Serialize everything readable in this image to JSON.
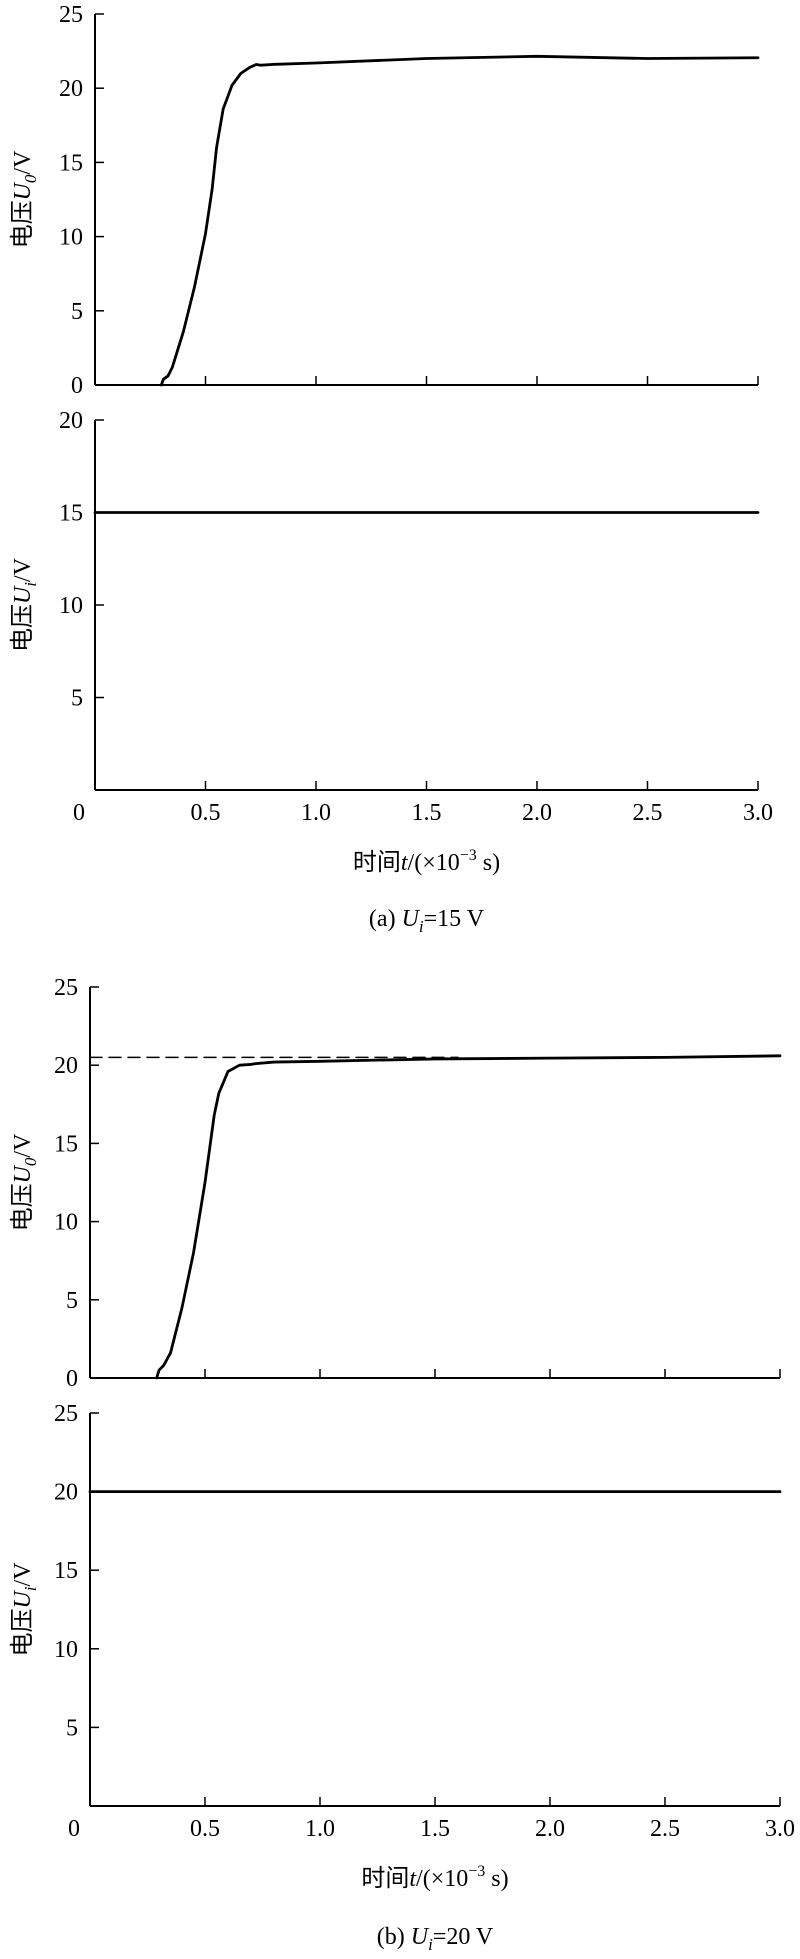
{
  "chart_data": [
    {
      "figure": "a",
      "caption": {
        "prefix": "(a) ",
        "var": "U",
        "sub": "i",
        "suffix": "=15 V"
      },
      "xlabel": {
        "prefix": "时间",
        "var": "t",
        "mid": "/(×10",
        "exp": "−3",
        "suffix": " s)"
      },
      "xlim": [
        0,
        3.0
      ],
      "xticks": [
        "0",
        "0.5",
        "1.0",
        "1.5",
        "2.0",
        "2.5",
        "3.0"
      ],
      "panels": [
        {
          "type": "line",
          "ylabel": {
            "prefix": "电压",
            "var": "U",
            "sub": "0",
            "suffix": "/V"
          },
          "ylim": [
            0,
            25
          ],
          "yticks": [
            "0",
            "5",
            "10",
            "15",
            "20",
            "25"
          ],
          "series": [
            {
              "style": "solid",
              "x": [
                0.3,
                0.31,
                0.33,
                0.35,
                0.4,
                0.45,
                0.5,
                0.53,
                0.55,
                0.58,
                0.62,
                0.66,
                0.7,
                0.73,
                0.75,
                0.8,
                1.0,
                1.5,
                2.0,
                2.5,
                3.0
              ],
              "y": [
                0.0,
                0.4,
                0.6,
                1.2,
                3.6,
                6.6,
                10.2,
                13.2,
                16.0,
                18.6,
                20.2,
                21.0,
                21.4,
                21.6,
                21.55,
                21.6,
                21.7,
                22.0,
                22.15,
                22.0,
                22.05
              ]
            }
          ]
        },
        {
          "type": "line",
          "ylabel": {
            "prefix": "电压",
            "var": "U",
            "sub": "i",
            "suffix": "/V"
          },
          "ylim": [
            0,
            20
          ],
          "yticks": [
            "0",
            "5",
            "10",
            "15",
            "20"
          ],
          "series": [
            {
              "style": "solid",
              "x": [
                0,
                3.0
              ],
              "y": [
                15,
                15
              ]
            }
          ]
        }
      ]
    },
    {
      "figure": "b",
      "caption": {
        "prefix": "(b) ",
        "var": "U",
        "sub": "i",
        "suffix": "=20 V"
      },
      "xlabel": {
        "prefix": "时间",
        "var": "t",
        "mid": "/(×10",
        "exp": "−3",
        "suffix": " s)"
      },
      "xlim": [
        0,
        3.0
      ],
      "xticks": [
        "0",
        "0.5",
        "1.0",
        "1.5",
        "2.0",
        "2.5",
        "3.0"
      ],
      "panels": [
        {
          "type": "line",
          "ylabel": {
            "prefix": "电压",
            "var": "U",
            "sub": "0",
            "suffix": "/V"
          },
          "ylim": [
            0,
            25
          ],
          "yticks": [
            "0",
            "5",
            "10",
            "15",
            "20",
            "25"
          ],
          "series": [
            {
              "style": "solid",
              "x": [
                0.29,
                0.3,
                0.32,
                0.35,
                0.4,
                0.45,
                0.5,
                0.54,
                0.56,
                0.6,
                0.65,
                0.7,
                0.72,
                0.8,
                1.0,
                1.5,
                2.0,
                2.5,
                3.0
              ],
              "y": [
                0.0,
                0.5,
                0.8,
                1.6,
                4.5,
                8.0,
                12.5,
                16.8,
                18.2,
                19.6,
                20.0,
                20.05,
                20.1,
                20.2,
                20.25,
                20.4,
                20.45,
                20.5,
                20.6
              ]
            },
            {
              "style": "dashed",
              "x": [
                0,
                1.6
              ],
              "y": [
                20.5,
                20.5
              ]
            }
          ]
        },
        {
          "type": "line",
          "ylabel": {
            "prefix": "电压",
            "var": "U",
            "sub": "i",
            "suffix": "/V"
          },
          "ylim": [
            0,
            25
          ],
          "yticks": [
            "0",
            "5",
            "10",
            "15",
            "20",
            "25"
          ],
          "series": [
            {
              "style": "solid",
              "x": [
                0,
                3.0
              ],
              "y": [
                20,
                20
              ]
            }
          ]
        }
      ]
    }
  ]
}
